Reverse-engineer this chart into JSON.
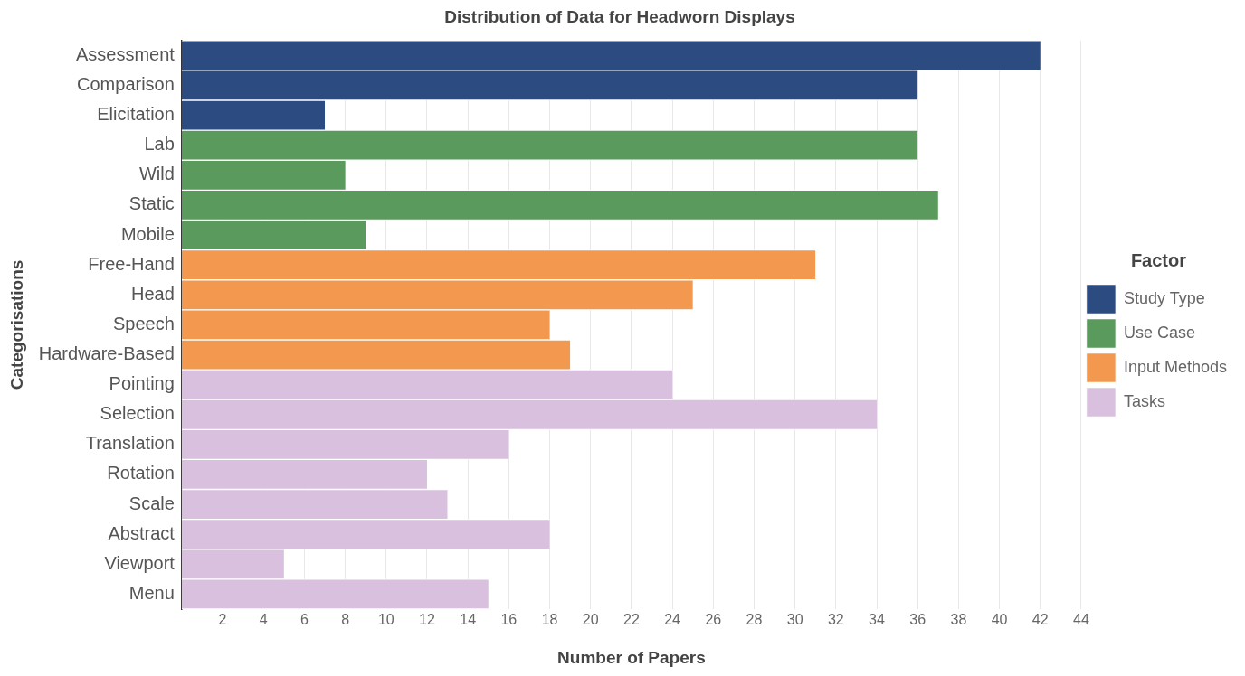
{
  "chart_data": {
    "type": "bar",
    "orientation": "horizontal",
    "stacked": true,
    "title": "Distribution of Data for Headworn Displays",
    "xlabel": "Number of Papers",
    "ylabel": "Categorisations",
    "legend_title": "Factor",
    "legend": "right",
    "grid": "x",
    "categories": [
      "Assessment",
      "Comparison",
      "Elicitation",
      "Lab",
      "Wild",
      "Static",
      "Mobile",
      "Free-Hand",
      "Head",
      "Speech",
      "Hardware-Based",
      "Pointing",
      "Selection",
      "Translation",
      "Rotation",
      "Scale",
      "Abstract",
      "Viewport",
      "Menu"
    ],
    "series": [
      {
        "name": "Study Type",
        "color": "#2c4b80",
        "values": [
          42,
          36,
          7,
          null,
          null,
          null,
          null,
          null,
          null,
          null,
          null,
          null,
          null,
          null,
          null,
          null,
          null,
          null,
          null
        ]
      },
      {
        "name": "Use Case",
        "color": "#5a9a5c",
        "values": [
          null,
          null,
          null,
          36,
          8,
          37,
          9,
          null,
          null,
          null,
          null,
          null,
          null,
          null,
          null,
          null,
          null,
          null,
          null
        ]
      },
      {
        "name": "Input Methods",
        "color": "#f2994f",
        "values": [
          null,
          null,
          null,
          null,
          null,
          null,
          null,
          31,
          25,
          18,
          19,
          null,
          null,
          null,
          null,
          null,
          null,
          null,
          null
        ]
      },
      {
        "name": "Tasks",
        "color": "#d9c0de",
        "values": [
          null,
          null,
          null,
          null,
          null,
          null,
          null,
          null,
          null,
          null,
          null,
          24,
          34,
          16,
          12,
          13,
          18,
          5,
          15
        ]
      }
    ],
    "xlim": [
      0,
      44
    ],
    "xticks": [
      2,
      4,
      6,
      8,
      10,
      12,
      14,
      16,
      18,
      20,
      22,
      24,
      26,
      28,
      30,
      32,
      34,
      36,
      38,
      40,
      42,
      44
    ]
  }
}
